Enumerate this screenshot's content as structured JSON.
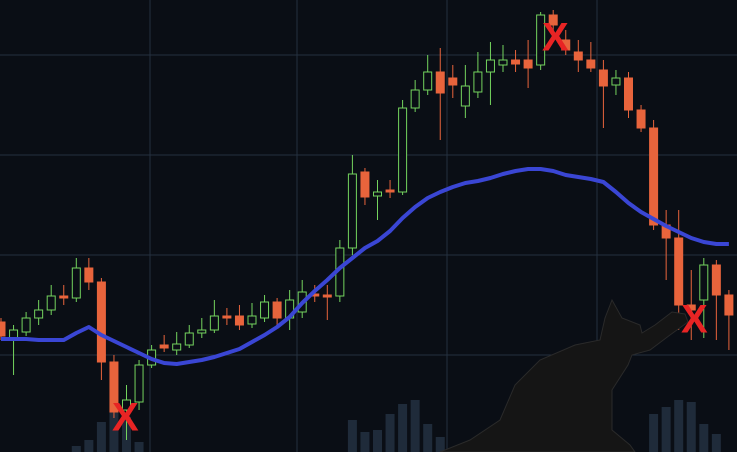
{
  "chart_data": {
    "type": "candlestick",
    "open": [
      133,
      117,
      123,
      137,
      145,
      159,
      157,
      187,
      173,
      93,
      45,
      53,
      90,
      110,
      105,
      110,
      122,
      125,
      139,
      139,
      131,
      137,
      153,
      137,
      143,
      161,
      160,
      159,
      207,
      283,
      259,
      265,
      263,
      347,
      365,
      383,
      377,
      349,
      363,
      383,
      390,
      395,
      395,
      390,
      440,
      415,
      403,
      395,
      385,
      370,
      377,
      345,
      327,
      230,
      217,
      150,
      155,
      190,
      160
    ],
    "high": [
      137,
      130,
      143,
      155,
      170,
      170,
      197,
      197,
      177,
      100,
      70,
      95,
      110,
      120,
      123,
      130,
      137,
      155,
      147,
      150,
      152,
      160,
      157,
      165,
      175,
      170,
      170,
      215,
      300,
      287,
      275,
      275,
      355,
      375,
      400,
      407,
      390,
      390,
      403,
      413,
      410,
      405,
      415,
      443,
      445,
      425,
      415,
      413,
      395,
      385,
      383,
      350,
      335,
      245,
      245,
      185,
      197,
      195,
      165
    ],
    "low": [
      115,
      80,
      119,
      130,
      140,
      150,
      153,
      165,
      75,
      37,
      15,
      45,
      87,
      103,
      100,
      107,
      117,
      122,
      130,
      125,
      127,
      133,
      130,
      125,
      137,
      153,
      135,
      153,
      200,
      250,
      235,
      257,
      260,
      343,
      360,
      315,
      357,
      337,
      357,
      350,
      383,
      383,
      367,
      385,
      413,
      400,
      383,
      383,
      327,
      360,
      337,
      323,
      225,
      175,
      125,
      115,
      117,
      115,
      105
    ],
    "close": [
      119,
      125,
      137,
      145,
      159,
      157,
      187,
      173,
      93,
      43,
      55,
      90,
      105,
      107,
      111,
      122,
      125,
      139,
      137,
      130,
      139,
      153,
      137,
      155,
      163,
      159,
      158,
      207,
      281,
      258,
      263,
      263,
      347,
      365,
      383,
      362,
      370,
      369,
      383,
      395,
      395,
      391,
      387,
      440,
      430,
      405,
      395,
      387,
      369,
      377,
      345,
      327,
      230,
      217,
      150,
      145,
      190,
      160,
      140
    ],
    "average": [
      116,
      116,
      116,
      115,
      115,
      115,
      122,
      128,
      120,
      114,
      108,
      102,
      96,
      92,
      91,
      93,
      95,
      98,
      102,
      106,
      113,
      120,
      128,
      138,
      152,
      164,
      175,
      187,
      197,
      207,
      214,
      224,
      237,
      248,
      257,
      263,
      268,
      272,
      274,
      277,
      281,
      284,
      286,
      286,
      284,
      280,
      278,
      276,
      273,
      263,
      252,
      243,
      236,
      229,
      223,
      217,
      213,
      211,
      211
    ],
    "volume": [
      0,
      0,
      0,
      0,
      0,
      0,
      6,
      12,
      30,
      40,
      35,
      10,
      0,
      0,
      0,
      0,
      0,
      0,
      0,
      0,
      0,
      0,
      0,
      0,
      0,
      0,
      0,
      0,
      32,
      20,
      22,
      38,
      48,
      52,
      28,
      15,
      0,
      0,
      0,
      0,
      0,
      0,
      0,
      0,
      0,
      0,
      0,
      0,
      0,
      0,
      0,
      0,
      38,
      45,
      52,
      50,
      28,
      18,
      0
    ],
    "volume_lim": [
      0,
      100
    ],
    "ylim": [
      3,
      455
    ],
    "yticks": [
      100,
      200,
      300,
      400
    ],
    "grid": true,
    "up_color": "#74d45e",
    "down_color": "#e8643c",
    "average_color": "#3a46d4",
    "volume_color": "#1f2b3a",
    "annotations": [
      "X",
      "X",
      "X"
    ]
  }
}
